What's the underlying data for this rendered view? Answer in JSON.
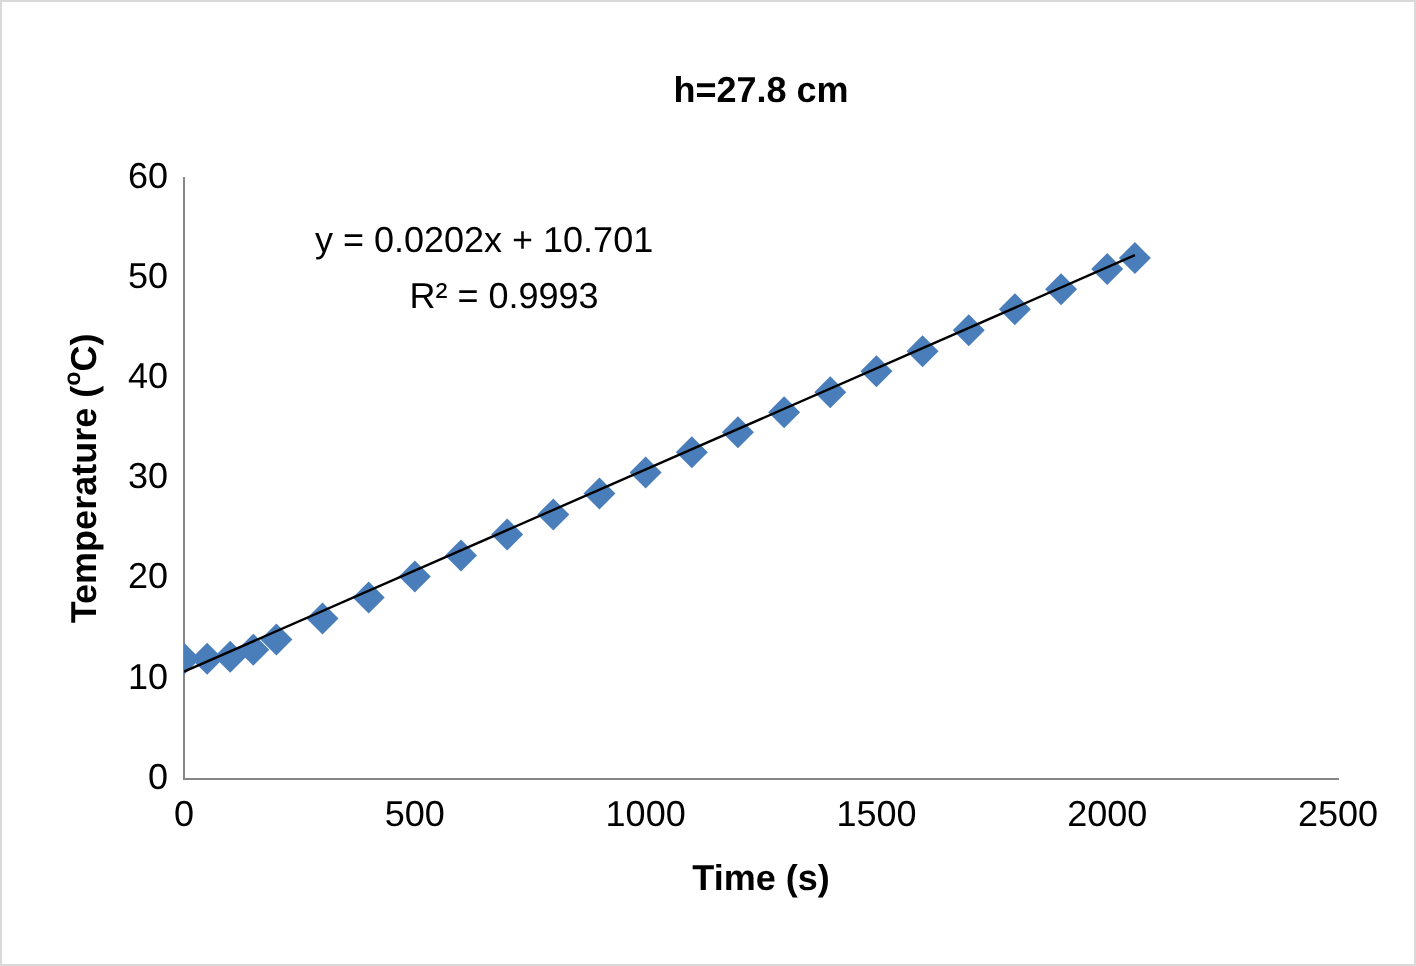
{
  "chart_data": {
    "type": "scatter",
    "title": "h=27.8 cm",
    "xlabel": "Time (s)",
    "ylabel": "Temperature ($^{o}$C)",
    "annotations": [
      "y = 0.0202x + 10.701",
      "R² = 0.9993"
    ],
    "series": [
      {
        "type": "scatter",
        "color": "#4a7ebb",
        "marker": "diamond",
        "x": [
          0,
          50,
          100,
          150,
          200,
          300,
          400,
          500,
          600,
          700,
          800,
          900,
          1000,
          1100,
          1200,
          1300,
          1400,
          1500,
          1600,
          1700,
          1800,
          1900,
          2000,
          2060
        ],
        "values": [
          12,
          12,
          12.2,
          12.9,
          13.9,
          16,
          18.1,
          20.2,
          22.3,
          24.4,
          26.4,
          28.5,
          30.6,
          32.6,
          34.6,
          36.6,
          38.6,
          40.7,
          42.7,
          44.8,
          46.9,
          48.9,
          50.9,
          52
        ]
      },
      {
        "type": "line",
        "color": "#000000",
        "marker": "none",
        "x": [
          0,
          2060
        ],
        "values": [
          10.7,
          52.3
        ]
      }
    ],
    "xlim": [
      0,
      2500
    ],
    "xticks": [
      0,
      500,
      1000,
      1500,
      2000,
      2500
    ],
    "ylim": [
      0,
      60
    ],
    "yticks": [
      0,
      10,
      20,
      30,
      40,
      50,
      60
    ],
    "grid": false,
    "legend": false
  }
}
